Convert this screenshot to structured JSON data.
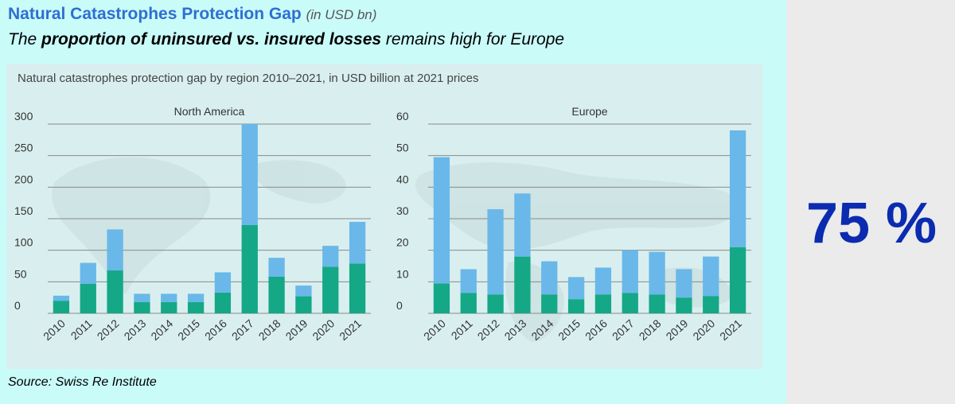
{
  "title": {
    "main": "Natural Catastrophes Protection Gap",
    "unit": "(in USD bn)",
    "subtitle_pre": "The ",
    "subtitle_bold": "proportion of uninsured vs. insured losses",
    "subtitle_post": " remains high for Europe"
  },
  "chart_heading": "Natural catastrophes protection gap by region 2010–2021, in USD billion at 2021 prices",
  "source": "Source: Swiss Re Institute",
  "kpi": "75 %",
  "colors": {
    "insured": "#14a887",
    "uninsured": "#69b8e9",
    "grid": "#8a8a8a"
  },
  "chart_data": [
    {
      "type": "bar",
      "stacked": true,
      "title": "North America",
      "categories": [
        "2010",
        "2011",
        "2012",
        "2013",
        "2014",
        "2015",
        "2016",
        "2017",
        "2018",
        "2019",
        "2020",
        "2021"
      ],
      "yticks": [
        0,
        50,
        100,
        150,
        200,
        250,
        300
      ],
      "ylim": [
        0,
        300
      ],
      "grid": true,
      "series": [
        {
          "key": "insured",
          "values": [
            20,
            47,
            68,
            18,
            18,
            18,
            33,
            140,
            58,
            27,
            74,
            79
          ]
        },
        {
          "key": "uninsured",
          "values": [
            8,
            33,
            65,
            13,
            13,
            13,
            32,
            160,
            30,
            17,
            33,
            66
          ]
        }
      ]
    },
    {
      "type": "bar",
      "stacked": true,
      "title": "Europe",
      "categories": [
        "2010",
        "2011",
        "2012",
        "2013",
        "2014",
        "2015",
        "2016",
        "2017",
        "2018",
        "2019",
        "2020",
        "2021"
      ],
      "yticks": [
        0,
        10,
        20,
        30,
        40,
        50,
        60
      ],
      "ylim": [
        0,
        60
      ],
      "grid": true,
      "series": [
        {
          "key": "insured",
          "values": [
            9.5,
            6.5,
            6,
            18,
            6,
            4.5,
            6,
            6.5,
            6,
            5,
            5.5,
            21
          ]
        },
        {
          "key": "uninsured",
          "values": [
            40,
            7.5,
            27,
            20,
            10.5,
            7,
            8.5,
            13.5,
            13.5,
            9,
            12.5,
            37
          ]
        }
      ]
    }
  ]
}
